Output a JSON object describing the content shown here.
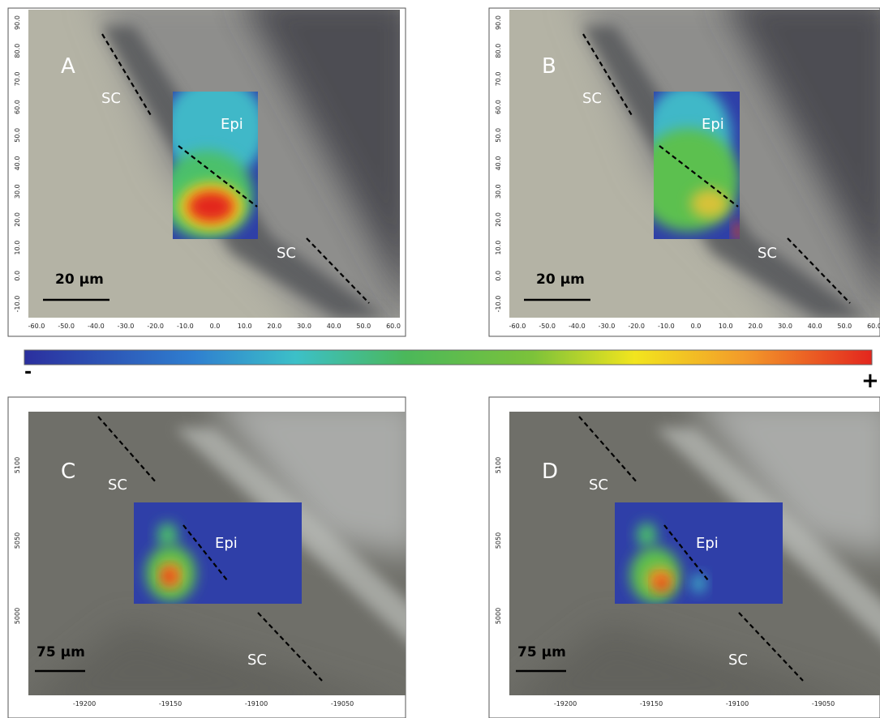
{
  "panels": [
    {
      "label": "A",
      "annotations": [
        "SC",
        "Epi",
        "SC"
      ],
      "scale_bar": "20 µm",
      "xticks": [
        "-60.0",
        "-50.0",
        "-40.0",
        "-30.0",
        "-20.0",
        "-10.0",
        "0.0",
        "10.0",
        "20.0",
        "30.0",
        "40.0",
        "50.0",
        "60.0"
      ],
      "yticks": [
        "-10.0",
        "0.0",
        "10.0",
        "20.0",
        "30.0",
        "40.0",
        "50.0",
        "60.0",
        "70.0",
        "80.0",
        "90.0"
      ]
    },
    {
      "label": "B",
      "annotations": [
        "SC",
        "Epi",
        "SC"
      ],
      "scale_bar": "20 µm",
      "xticks": [
        "-60.0",
        "-50.0",
        "-40.0",
        "-30.0",
        "-20.0",
        "-10.0",
        "0.0",
        "10.0",
        "20.0",
        "30.0",
        "40.0",
        "50.0",
        "60.0"
      ],
      "yticks": [
        "-10.0",
        "0.0",
        "10.0",
        "20.0",
        "30.0",
        "40.0",
        "50.0",
        "60.0",
        "70.0",
        "80.0",
        "90.0"
      ]
    },
    {
      "label": "C",
      "annotations": [
        "SC",
        "Epi",
        "SC"
      ],
      "scale_bar": "75 µm",
      "xticks": [
        "-19200",
        "-19150",
        "-19100",
        "-19050"
      ],
      "yticks": [
        "5000",
        "5050",
        "5100"
      ]
    },
    {
      "label": "D",
      "annotations": [
        "SC",
        "Epi",
        "SC"
      ],
      "scale_bar": "75 µm",
      "xticks": [
        "-19200",
        "-19150",
        "-19100",
        "-19050"
      ],
      "yticks": [
        "5000",
        "5050",
        "5100"
      ]
    }
  ],
  "colorbar": {
    "min_label": "-",
    "max_label": "+"
  }
}
